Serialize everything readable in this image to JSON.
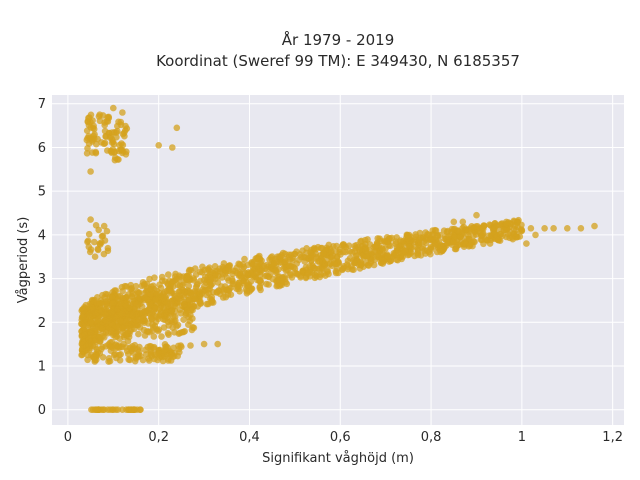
{
  "chart_data": {
    "type": "scatter",
    "title_lines": [
      "År 1979 - 2019",
      "Koordinat (Sweref 99 TM): E 349430, N 6185357"
    ],
    "xlabel": "Signifikant våghöjd (m)",
    "ylabel": "Vågperiod (s)",
    "xlim": [
      -0.035,
      1.225
    ],
    "ylim": [
      -0.35,
      7.2
    ],
    "xticks": [
      0,
      0.2,
      0.4,
      0.6,
      0.8,
      1,
      1.2
    ],
    "xtick_labels": [
      "0",
      "0,2",
      "0,4",
      "0,6",
      "0,8",
      "1",
      "1,2"
    ],
    "yticks": [
      0,
      1,
      2,
      3,
      4,
      5,
      6,
      7
    ],
    "ytick_labels": [
      "0",
      "1",
      "2",
      "3",
      "4",
      "5",
      "6",
      "7"
    ],
    "grid": true,
    "colors": {
      "marker": "#d4a21e",
      "plot_background": "#e8e8f0",
      "grid": "#ffffff"
    },
    "clusters": [
      {
        "name": "main-band",
        "x_range": [
          0.03,
          1.0
        ],
        "y_center_at_x0": 1.5,
        "y_trend": "rises from about 1.4-2.2 s at 0.05 m to about 3.8-4.0 s at 1 m",
        "approx_count": 1400
      },
      {
        "name": "swell-cluster",
        "x_range": [
          0.05,
          0.13
        ],
        "y_range": [
          5.8,
          6.9
        ],
        "approx_count": 90
      },
      {
        "name": "zero-period",
        "x_range": [
          0.05,
          0.16
        ],
        "y": 0,
        "approx_count": 30
      },
      {
        "name": "mid-cluster",
        "x_range": [
          0.04,
          0.09
        ],
        "y_range": [
          3.5,
          4.3
        ],
        "approx_count": 20
      },
      {
        "name": "low-band",
        "x_range": [
          0.04,
          0.25
        ],
        "y_range": [
          1.1,
          1.5
        ],
        "approx_count": 120
      }
    ],
    "points": [
      [
        0.05,
        5.45
      ],
      [
        0.2,
        6.05
      ],
      [
        0.23,
        6.0
      ],
      [
        0.24,
        6.45
      ],
      [
        0.1,
        6.9
      ],
      [
        0.07,
        6.75
      ],
      [
        0.09,
        6.7
      ],
      [
        0.12,
        6.8
      ],
      [
        0.08,
        4.2
      ],
      [
        0.05,
        4.35
      ],
      [
        0.06,
        3.5
      ],
      [
        0.07,
        3.8
      ],
      [
        0.85,
        4.3
      ],
      [
        0.87,
        4.3
      ],
      [
        0.9,
        4.45
      ],
      [
        0.99,
        4.3
      ],
      [
        1.0,
        4.1
      ],
      [
        1.02,
        4.15
      ],
      [
        1.05,
        4.15
      ],
      [
        1.07,
        4.15
      ],
      [
        1.1,
        4.15
      ],
      [
        1.16,
        4.2
      ],
      [
        1.13,
        4.15
      ],
      [
        1.03,
        4.0
      ],
      [
        0.98,
        3.9
      ],
      [
        0.93,
        3.8
      ],
      [
        1.01,
        3.8
      ],
      [
        0.3,
        1.5
      ],
      [
        0.33,
        1.5
      ],
      [
        0.27,
        1.47
      ],
      [
        0.22,
        1.42
      ],
      [
        0.19,
        1.4
      ],
      [
        0.1,
        0
      ],
      [
        0.12,
        0
      ],
      [
        0.14,
        0
      ],
      [
        0.16,
        0
      ],
      [
        0.06,
        0
      ],
      [
        0.08,
        0
      ]
    ]
  }
}
